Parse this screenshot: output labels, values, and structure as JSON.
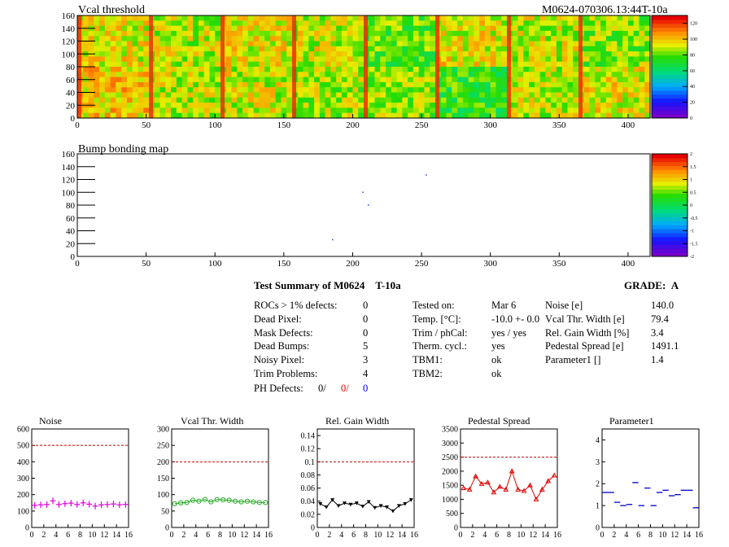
{
  "header": {
    "left_title": "Vcal threshold",
    "right_title": "M0624-070306.13:44T-10a"
  },
  "map1": {
    "title": "Vcal threshold",
    "x_ticks": [
      "0",
      "50",
      "100",
      "150",
      "200",
      "250",
      "300",
      "350",
      "400"
    ],
    "y_ticks": [
      "0",
      "20",
      "40",
      "60",
      "80",
      "100",
      "120",
      "140",
      "160"
    ],
    "colorbar_ticks": [
      "0",
      "20",
      "40",
      "60",
      "80",
      "100",
      "120"
    ]
  },
  "map2": {
    "title": "Bump bonding map",
    "x_ticks": [
      "0",
      "50",
      "100",
      "150",
      "200",
      "250",
      "300",
      "350",
      "400"
    ],
    "y_ticks": [
      "0",
      "20",
      "40",
      "60",
      "80",
      "100",
      "120",
      "140",
      "160"
    ],
    "colorbar_ticks": [
      "-2",
      "-1.5",
      "-1",
      "-0.5",
      "0",
      "0.5",
      "1",
      "1.5",
      "2"
    ]
  },
  "summary": {
    "title": "Test Summary of M0624",
    "temp_tag": "T-10a",
    "grade_label": "GRADE:",
    "grade": "A",
    "col1": [
      {
        "label": "ROCs > 1% defects:",
        "value": "0"
      },
      {
        "label": "Dead Pixel:",
        "value": "0"
      },
      {
        "label": "Mask Defects:",
        "value": "0"
      },
      {
        "label": "Dead Bumps:",
        "value": "5"
      },
      {
        "label": "Noisy Pixel:",
        "value": "3"
      },
      {
        "label": "Trim Problems:",
        "value": "4"
      }
    ],
    "ph_defects": {
      "label": "PH Defects:",
      "v1": "0/",
      "v2": "0/",
      "v3": "0"
    },
    "col2": [
      {
        "label": "Tested on:",
        "value": "Mar 6"
      },
      {
        "label": "Temp. [°C]:",
        "value": "-10.0 +- 0.0"
      },
      {
        "label": "Trim / phCal:",
        "value": "yes / yes"
      },
      {
        "label": "Therm. cycl.:",
        "value": "yes"
      },
      {
        "label": "TBM1:",
        "value": "ok"
      },
      {
        "label": "TBM2:",
        "value": "ok"
      }
    ],
    "col3": [
      {
        "label": "Noise [e]",
        "value": "140.0"
      },
      {
        "label": "Vcal Thr. Width [e]",
        "value": "79.4"
      },
      {
        "label": "Rel. Gain Width [%]",
        "value": "3.4"
      },
      {
        "label": "Pedestal Spread [e]",
        "value": "1491.1"
      },
      {
        "label": "Parameter1 []",
        "value": "1.4"
      }
    ]
  },
  "colors": {
    "magenta": "#e000e0",
    "green": "#22aa22",
    "black": "#000000",
    "red": "#e00000",
    "blue": "#0000cc",
    "limit": "#cc0000"
  },
  "chart_data": [
    {
      "type": "heatmap",
      "title": "Vcal threshold",
      "xlim": [
        0,
        416
      ],
      "ylim": [
        0,
        160
      ],
      "zlim": [
        0,
        130
      ],
      "roc_grid": {
        "columns": 8,
        "rows": 2
      },
      "roc_mean_values": [
        [
          95,
          90,
          95,
          92,
          80,
          95,
          92,
          85
        ],
        [
          100,
          90,
          92,
          88,
          85,
          75,
          90,
          95
        ]
      ],
      "note_rows": "row 0 = top half (y 80-160), row 1 = bottom half (y 0-80)"
    },
    {
      "type": "heatmap",
      "title": "Bump bonding map",
      "xlim": [
        0,
        416
      ],
      "ylim": [
        0,
        160
      ],
      "zlim": [
        -2,
        2
      ],
      "hits": [
        {
          "x": 253,
          "y": 128
        },
        {
          "x": 207,
          "y": 101
        },
        {
          "x": 211,
          "y": 81
        },
        {
          "x": 185,
          "y": 27
        }
      ]
    },
    {
      "type": "line",
      "title": "Noise",
      "xlim": [
        0,
        16
      ],
      "ylim": [
        0,
        600
      ],
      "x": [
        0,
        1,
        2,
        3,
        4,
        5,
        6,
        7,
        8,
        9,
        10,
        11,
        12,
        13,
        14,
        15
      ],
      "values": [
        135,
        138,
        140,
        162,
        140,
        145,
        148,
        140,
        150,
        142,
        130,
        138,
        140,
        143,
        138,
        140
      ],
      "limit": 500,
      "y_ticks": [
        "0",
        "100",
        "200",
        "300",
        "400",
        "500",
        "600"
      ]
    },
    {
      "type": "line",
      "title": "Vcal Thr. Width",
      "xlim": [
        0,
        16
      ],
      "ylim": [
        0,
        300
      ],
      "x": [
        0,
        1,
        2,
        3,
        4,
        5,
        6,
        7,
        8,
        9,
        10,
        11,
        12,
        13,
        14,
        15
      ],
      "values": [
        72,
        75,
        76,
        83,
        80,
        85,
        78,
        85,
        84,
        83,
        80,
        78,
        80,
        78,
        76,
        76
      ],
      "limit": 200,
      "y_ticks": [
        "0",
        "50",
        "100",
        "150",
        "200",
        "250",
        "300"
      ]
    },
    {
      "type": "line",
      "title": "Rel. Gain Width",
      "xlim": [
        0,
        16
      ],
      "ylim": [
        0,
        0.15
      ],
      "x": [
        0,
        1,
        2,
        3,
        4,
        5,
        6,
        7,
        8,
        9,
        10,
        11,
        12,
        13,
        14,
        15
      ],
      "values": [
        0.036,
        0.031,
        0.042,
        0.033,
        0.037,
        0.035,
        0.037,
        0.032,
        0.039,
        0.03,
        0.033,
        0.031,
        0.025,
        0.033,
        0.036,
        0.042
      ],
      "limit": 0.1,
      "y_ticks": [
        "0",
        "0.02",
        "0.04",
        "0.06",
        "0.08",
        "0.1",
        "0.12",
        "0.14"
      ]
    },
    {
      "type": "line",
      "title": "Pedestal Spread",
      "xlim": [
        0,
        16
      ],
      "ylim": [
        0,
        3500
      ],
      "x": [
        0,
        1,
        2,
        3,
        4,
        5,
        6,
        7,
        8,
        9,
        10,
        11,
        12,
        13,
        14,
        15
      ],
      "values": [
        1400,
        1350,
        1820,
        1550,
        1600,
        1250,
        1450,
        1350,
        2000,
        1350,
        1300,
        1500,
        1000,
        1350,
        1650,
        1850
      ],
      "limit": 2500,
      "y_ticks": [
        "0",
        "500",
        "1000",
        "1500",
        "2000",
        "2500",
        "3000",
        "3500"
      ]
    },
    {
      "type": "scatter",
      "title": "Parameter1",
      "xlim": [
        0,
        16
      ],
      "ylim": [
        0,
        4.5
      ],
      "x": [
        0,
        1,
        2,
        3,
        4,
        5,
        6,
        7,
        8,
        9,
        10,
        11,
        12,
        13,
        14,
        15
      ],
      "values": [
        1.6,
        1.6,
        1.15,
        1.0,
        1.05,
        2.05,
        1.0,
        1.8,
        1.0,
        1.6,
        1.7,
        1.45,
        1.5,
        1.7,
        1.7,
        0.9
      ],
      "y_ticks": [
        "0",
        "1",
        "2",
        "3",
        "4"
      ]
    }
  ],
  "small_x_ticks": [
    "0",
    "2",
    "4",
    "6",
    "8",
    "10",
    "12",
    "14",
    "16"
  ]
}
